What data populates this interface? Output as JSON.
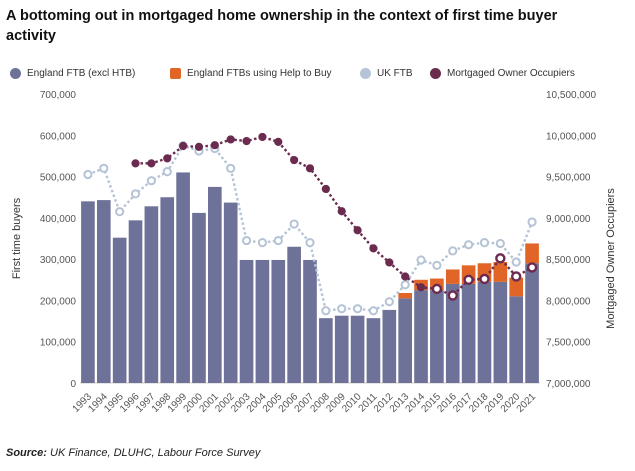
{
  "title": "A bottoming out in mortgaged home ownership in the context of first time buyer activity",
  "source_label": "Source:",
  "source_text": "UK Finance, DLUHC, Labour Force Survey",
  "colors": {
    "england_ftb": "#6e7299",
    "help_to_buy": "#e06526",
    "uk_ftb": "#b5c3d6",
    "owner_occupiers": "#6b2b4f"
  },
  "chart_data": {
    "type": "bar",
    "categories": [
      "1993",
      "1994",
      "1995",
      "1996",
      "1997",
      "1998",
      "1999",
      "2000",
      "2001",
      "2002",
      "2003",
      "2004",
      "2005",
      "2006",
      "2007",
      "2008",
      "2009",
      "2010",
      "2011",
      "2012",
      "2013",
      "2014",
      "2015",
      "2016",
      "2017",
      "2018",
      "2019",
      "2020",
      "2021"
    ],
    "y_left": {
      "label": "First time buyers",
      "range": [
        0,
        700000
      ],
      "ticks": [
        "0",
        "100,000",
        "200,000",
        "300,000",
        "400,000",
        "500,000",
        "600,000",
        "700,000"
      ]
    },
    "y_right": {
      "label": "Mortgaged Owner Occupiers",
      "range": [
        7000000,
        10500000
      ],
      "ticks": [
        "7,000,000",
        "7,500,000",
        "8,000,000",
        "8,500,000",
        "9,000,000",
        "9,500,000",
        "10,000,000",
        "10,500,000"
      ]
    },
    "series": [
      {
        "name": "England FTB (excl HTB)",
        "type": "bar",
        "axis": "left",
        "values": [
          440000,
          443000,
          352000,
          394000,
          428000,
          450000,
          510000,
          412000,
          475000,
          437000,
          298000,
          298000,
          298000,
          330000,
          298000,
          157000,
          163000,
          163000,
          157000,
          177000,
          205000,
          225000,
          225000,
          240000,
          240000,
          245000,
          245000,
          210000,
          290000
        ]
      },
      {
        "name": "England FTBs using Help to Buy",
        "type": "bar-stacked",
        "axis": "left",
        "values": [
          0,
          0,
          0,
          0,
          0,
          0,
          0,
          0,
          0,
          0,
          0,
          0,
          0,
          0,
          0,
          0,
          0,
          0,
          0,
          0,
          13000,
          25000,
          28000,
          35000,
          45000,
          45000,
          48000,
          45000,
          48000
        ]
      },
      {
        "name": "UK FTB",
        "type": "line",
        "axis": "left",
        "values": [
          505000,
          520000,
          415000,
          458000,
          490000,
          512000,
          575000,
          562000,
          568000,
          520000,
          345000,
          340000,
          345000,
          385000,
          340000,
          175000,
          180000,
          180000,
          175000,
          197000,
          238000,
          298000,
          285000,
          320000,
          335000,
          340000,
          338000,
          293000,
          390000
        ]
      },
      {
        "name": "Mortgaged Owner Occupiers",
        "type": "line",
        "axis": "right",
        "values": [
          null,
          null,
          null,
          9660000,
          9660000,
          9720000,
          9870000,
          9860000,
          9880000,
          9950000,
          9930000,
          9980000,
          9920000,
          9700000,
          9600000,
          9350000,
          9080000,
          8850000,
          8630000,
          8460000,
          8290000,
          8160000,
          8140000,
          8060000,
          8250000,
          8260000,
          8510000,
          8290000,
          8400000
        ]
      }
    ],
    "legend_position": "top",
    "grid": false
  }
}
